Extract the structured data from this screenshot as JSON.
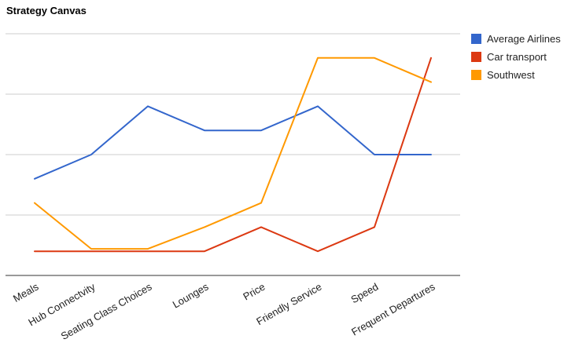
{
  "chart_data": {
    "type": "line",
    "title": "Strategy Canvas",
    "xlabel": "",
    "ylabel": "",
    "categories": [
      "Meals",
      "Hub Connectvity",
      "Seating Class Choices",
      "Lounges",
      "Price",
      "Friendly Service",
      "Speed",
      "Frequent Departures"
    ],
    "ylim": [
      0,
      10
    ],
    "grid": true,
    "legend_position": "right",
    "series": [
      {
        "name": "Average Airlines",
        "color": "#3366cc",
        "values": [
          4,
          5,
          7,
          6,
          6,
          7,
          5,
          5
        ]
      },
      {
        "name": "Car transport",
        "color": "#dc3912",
        "values": [
          1,
          1,
          1,
          1,
          2,
          1,
          2,
          9
        ]
      },
      {
        "name": "Southwest",
        "color": "#ff9900",
        "values": [
          3,
          1.1,
          1.1,
          2,
          3,
          9,
          9,
          8
        ]
      }
    ]
  }
}
